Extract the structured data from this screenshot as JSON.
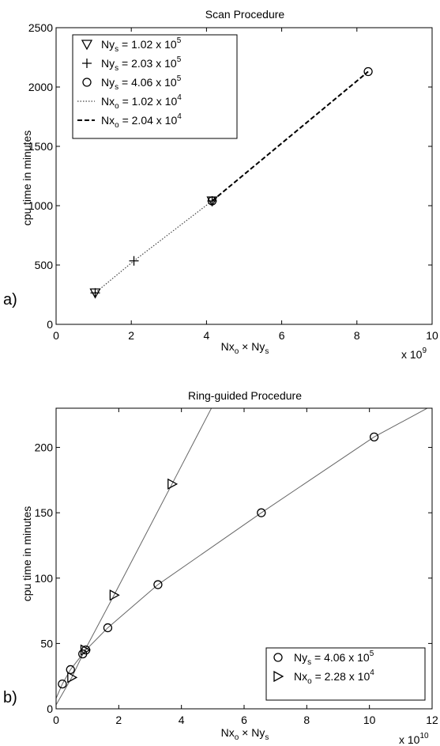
{
  "chart_data": [
    {
      "type": "scatter",
      "panel_label": "a)",
      "title": "Scan Procedure",
      "ylabel": "cpu time in minutes",
      "xlabel": {
        "p1": "Nx",
        "s1": "o",
        "p2": " × Ny",
        "s2": "s"
      },
      "x_exponent": {
        "base": "x 10",
        "exp": "9"
      },
      "xlim": [
        0,
        10
      ],
      "ylim": [
        0,
        2500
      ],
      "xticks": [
        "0",
        "2",
        "4",
        "6",
        "8",
        "10"
      ],
      "yticks": [
        "0",
        "500",
        "1000",
        "1500",
        "2000",
        "2500"
      ],
      "legend_position": "top-left",
      "series": [
        {
          "name": {
            "p1": "Ny",
            "sub": "s",
            "p2": " = 1.02 x 10",
            "sup": "5"
          },
          "marker": "triangle-down",
          "x": [
            1.04,
            4.15
          ],
          "y": [
            265,
            1040
          ]
        },
        {
          "name": {
            "p1": "Ny",
            "sub": "s",
            "p2": " = 2.03 x 10",
            "sup": "5"
          },
          "marker": "plus",
          "x": [
            1.04,
            2.07,
            4.15
          ],
          "y": [
            265,
            535,
            1040
          ]
        },
        {
          "name": {
            "p1": "Ny",
            "sub": "s",
            "p2": " = 4.06 x 10",
            "sup": "5"
          },
          "marker": "circle",
          "x": [
            4.15,
            8.3
          ],
          "y": [
            1040,
            2130
          ]
        },
        {
          "name": {
            "p1": "Nx",
            "sub": "o",
            "p2": " = 1.02 x 10",
            "sup": "4"
          },
          "line": "dotted",
          "x": [
            1.04,
            2.07,
            4.15
          ],
          "y": [
            265,
            535,
            1040
          ]
        },
        {
          "name": {
            "p1": "Nx",
            "sub": "o",
            "p2": " = 2.04 x 10",
            "sup": "4"
          },
          "line": "dashed",
          "x": [
            4.15,
            8.3
          ],
          "y": [
            1040,
            2130
          ]
        }
      ]
    },
    {
      "type": "scatter",
      "panel_label": "b)",
      "title": "Ring-guided Procedure",
      "ylabel": "cpu time in minutes",
      "xlabel": {
        "p1": "Nx",
        "s1": "o",
        "p2": " × Ny",
        "s2": "s"
      },
      "x_exponent": {
        "base": "x 10",
        "exp": "10"
      },
      "xlim": [
        0,
        12
      ],
      "ylim": [
        0,
        230
      ],
      "xticks": [
        "0",
        "2",
        "4",
        "6",
        "8",
        "10",
        "12"
      ],
      "yticks": [
        "0",
        "50",
        "100",
        "150",
        "200"
      ],
      "legend_position": "bottom-right",
      "series": [
        {
          "name": {
            "p1": "Ny",
            "sub": "s",
            "p2": " = 4.06 x 10",
            "sup": "5"
          },
          "marker": "circle",
          "x": [
            0.2,
            0.46,
            0.85,
            0.95,
            1.65,
            3.25,
            6.55,
            10.15
          ],
          "y": [
            19,
            30,
            42,
            45,
            62,
            95,
            150,
            208
          ]
        },
        {
          "name": {
            "p1": "Nx",
            "sub": "o",
            "p2": " = 2.28 x 10",
            "sup": "4"
          },
          "marker": "triangle-right",
          "x": [
            0.5,
            0.92,
            1.85,
            3.7
          ],
          "y": [
            24,
            45,
            87,
            172
          ]
        }
      ]
    }
  ]
}
